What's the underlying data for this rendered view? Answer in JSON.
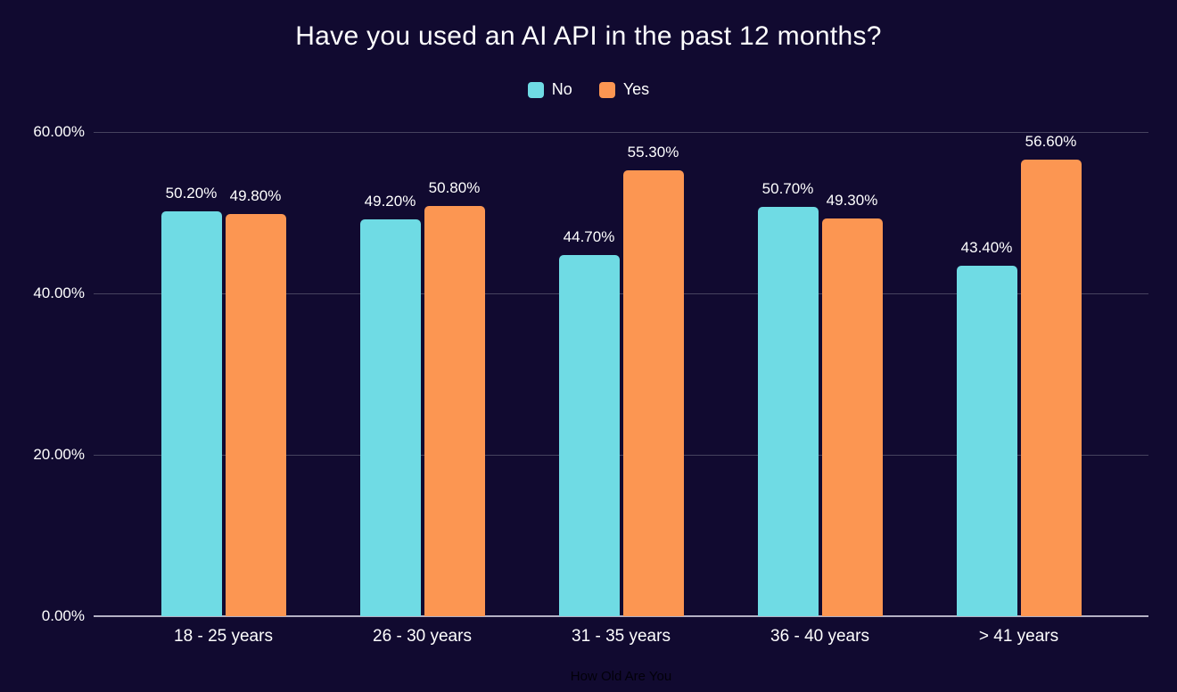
{
  "chart_data": {
    "type": "bar",
    "title": "Have you used an AI API in the past 12 months?",
    "xlabel": "How Old Are You",
    "ylabel": "",
    "categories": [
      "18 - 25 years",
      "26 - 30 years",
      "31 - 35 years",
      "36 - 40 years",
      "> 41 years"
    ],
    "series": [
      {
        "name": "No",
        "color": "#6fdbe4",
        "values": [
          50.2,
          49.2,
          44.7,
          50.7,
          43.4
        ],
        "value_labels": [
          "50.20%",
          "49.20%",
          "44.70%",
          "50.70%",
          "43.40%"
        ]
      },
      {
        "name": "Yes",
        "color": "#fc9652",
        "values": [
          49.8,
          50.8,
          55.3,
          49.3,
          56.6
        ],
        "value_labels": [
          "49.80%",
          "50.80%",
          "55.30%",
          "49.30%",
          "56.60%"
        ]
      }
    ],
    "yticks": [
      {
        "value": 60,
        "label": "60.00%"
      },
      {
        "value": 40,
        "label": "40.00%"
      },
      {
        "value": 20,
        "label": "20.00%"
      },
      {
        "value": 0,
        "label": "0.00%"
      }
    ],
    "ylim": [
      0,
      60
    ],
    "grid": true,
    "legend_position": "top"
  },
  "colors": {
    "background": "#110a30",
    "grid": "#46425e",
    "axis_line": "#b4b1c4",
    "text": "#ffffff",
    "xlabel_text": "#02000a"
  }
}
